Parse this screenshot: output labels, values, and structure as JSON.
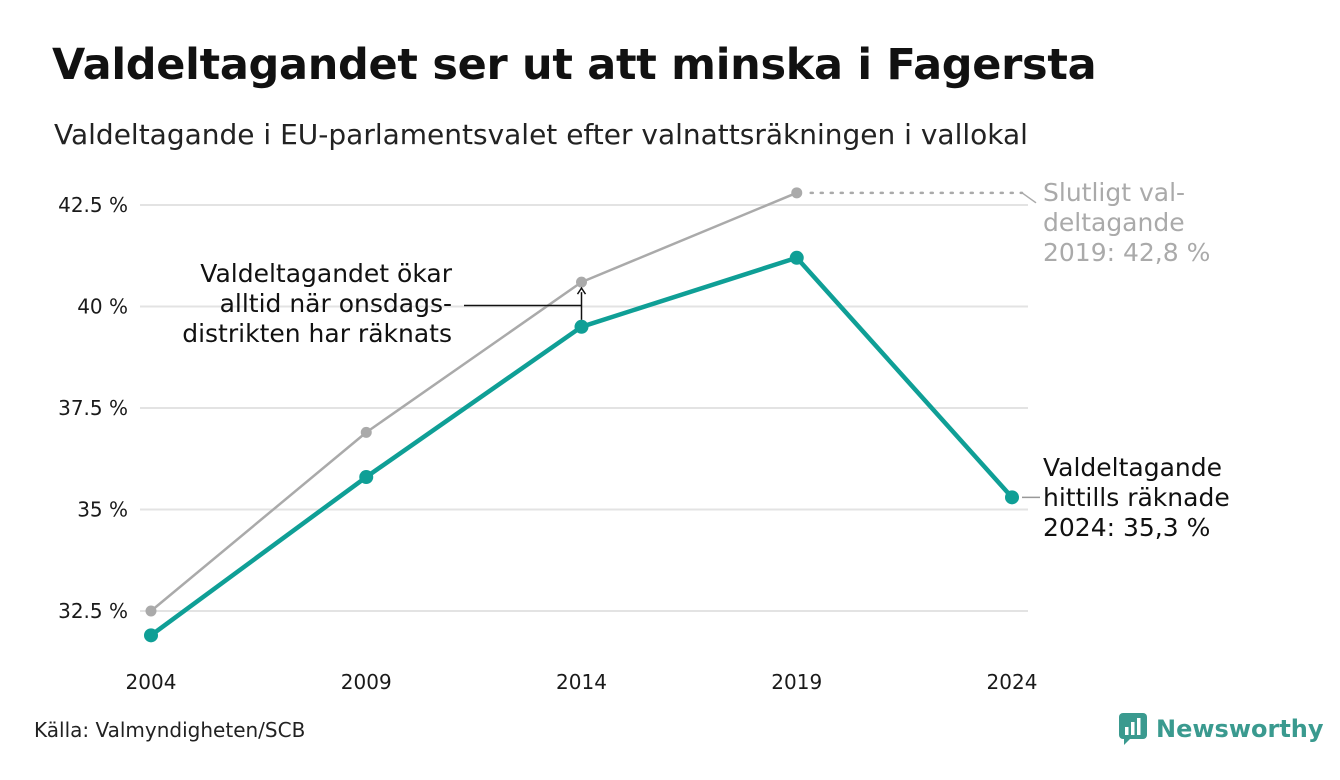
{
  "chart_data": {
    "type": "line",
    "title": "Valdeltagandet ser ut att minska i Fagersta",
    "subtitle": "Valdeltagande i EU-parlamentsvalet efter valnattsräkningen i vallokal",
    "xlabel": "",
    "ylabel": "",
    "x": [
      "2004",
      "2009",
      "2014",
      "2019",
      "2024"
    ],
    "y_ticks": [
      32.5,
      35,
      37.5,
      40,
      42.5
    ],
    "y_tick_labels": [
      "32.5 %",
      "35 %",
      "37.5 %",
      "40 %",
      "42.5 %"
    ],
    "ylim": [
      31.7,
      43.2
    ],
    "grid": "horizontal",
    "series": [
      {
        "key": "final",
        "color": "#aaaaaa",
        "values": [
          32.5,
          36.9,
          40.6,
          42.8,
          null
        ]
      },
      {
        "key": "valnatt",
        "color": "#0f9f96",
        "values": [
          31.9,
          35.8,
          39.5,
          41.2,
          35.3
        ]
      }
    ],
    "annotations": {
      "final_2019": [
        "Slutligt val-",
        "deltagande",
        "2019: 42,8 %"
      ],
      "current_2024": [
        "Valdeltagande",
        "hittills räknade",
        "2024: 35,3 %"
      ],
      "wednesday": [
        "Valdeltagandet ökar",
        "alltid när onsdags-",
        "distrikten har räknats"
      ]
    }
  },
  "footer": {
    "source": "Källa: Valmyndigheten/SCB",
    "brand": "Newsworthy"
  },
  "colors": {
    "accent": "#0f9f96",
    "secondary": "#aaaaaa",
    "brand": "#3a9a8f",
    "grid": "#e3e3e3"
  }
}
